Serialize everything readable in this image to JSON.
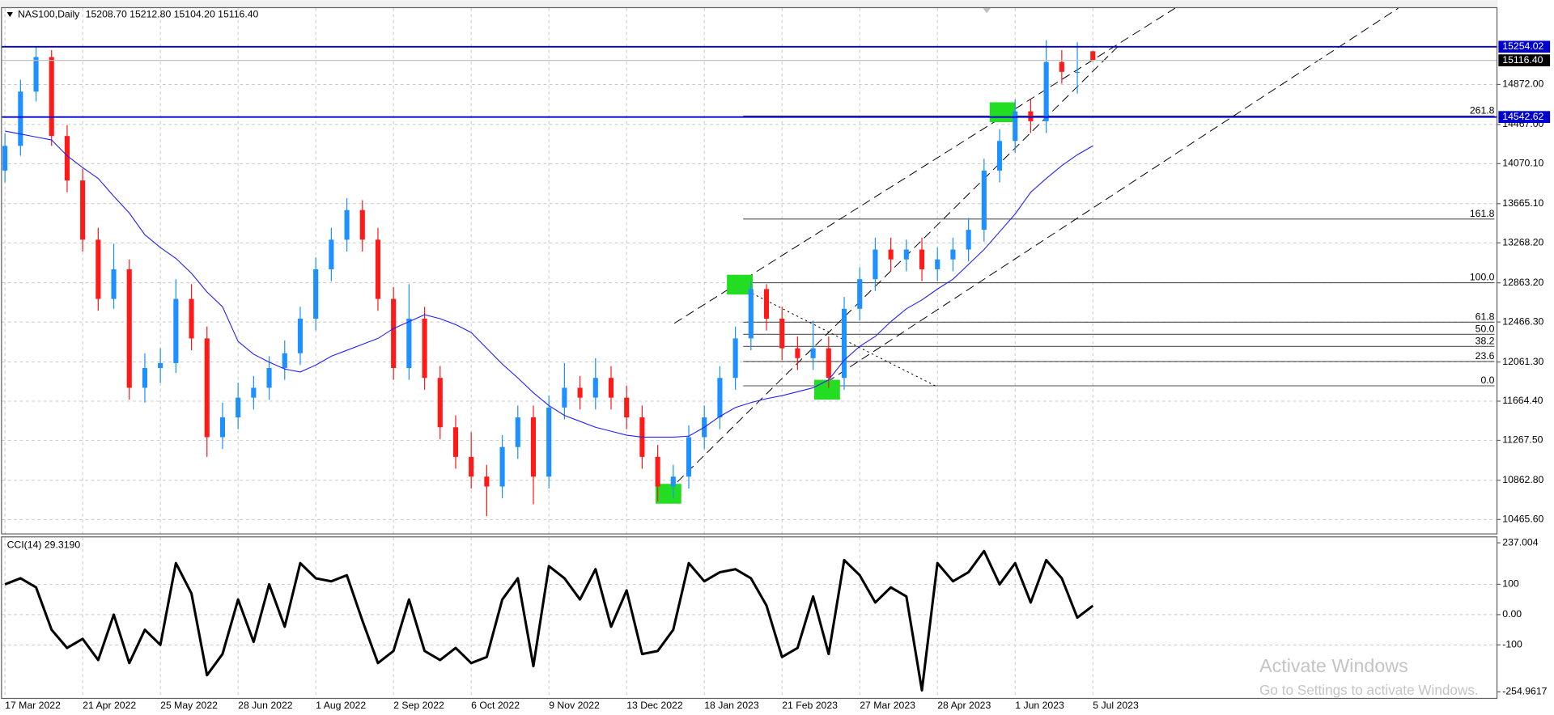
{
  "chart_data": [
    {
      "type": "candlestick",
      "title": "NAS100,Daily",
      "subtitle": "15208.70 15212.80 15104.20 15116.40",
      "categories": [
        "17 Mar 2022",
        null,
        null,
        null,
        null,
        "21 Apr 2022",
        null,
        null,
        null,
        null,
        "25 May 2022",
        null,
        null,
        null,
        null,
        "28 Jun 2022",
        null,
        null,
        null,
        null,
        "1 Aug 2022",
        null,
        null,
        null,
        null,
        "2 Sep 2022",
        null,
        null,
        null,
        null,
        "6 Oct 2022",
        null,
        null,
        null,
        null,
        "9 Nov 2022",
        null,
        null,
        null,
        null,
        "13 Dec 2022",
        null,
        null,
        null,
        null,
        "18 Jan 2023",
        null,
        null,
        null,
        null,
        "21 Feb 2023",
        null,
        null,
        null,
        null,
        "27 Mar 2023",
        null,
        null,
        null,
        null,
        "28 Apr 2023",
        null,
        null,
        null,
        null,
        "1 Jun 2023",
        null,
        null,
        null,
        null,
        "5 Jul 2023"
      ],
      "open": [
        14000,
        14250,
        14800,
        15150,
        14350,
        13900,
        13300,
        12700,
        13000,
        11800,
        12000,
        12050,
        12700,
        12300,
        11300,
        11500,
        11700,
        11800,
        12000,
        12150,
        12500,
        13000,
        13300,
        13600,
        13300,
        12700,
        12000,
        12500,
        11900,
        11400,
        11100,
        10900,
        10800,
        11200,
        11500,
        10900,
        11600,
        11800,
        11700,
        11900,
        11700,
        11500,
        11100,
        10800,
        10900,
        11300,
        11500,
        11900,
        12300,
        12800,
        12500,
        12200,
        12100,
        12200,
        11900,
        12600,
        12900,
        13200,
        13100,
        13200,
        13000,
        13100,
        13200,
        13400,
        14000,
        14300,
        14600,
        14500,
        15100,
        15000,
        15208.7
      ],
      "high": [
        14380,
        14920,
        15260,
        15220,
        14460,
        14020,
        13420,
        13260,
        13100,
        12150,
        12200,
        12900,
        12850,
        12420,
        11650,
        11850,
        11920,
        12120,
        12280,
        12620,
        13120,
        13420,
        13720,
        13700,
        13420,
        12820,
        12850,
        12620,
        12020,
        11520,
        11350,
        11020,
        11320,
        11620,
        11620,
        11720,
        12050,
        11920,
        12100,
        12020,
        11820,
        11620,
        11220,
        11020,
        11420,
        11620,
        12020,
        12420,
        12880,
        12850,
        12620,
        12320,
        12480,
        12320,
        12720,
        13020,
        13320,
        13320,
        13300,
        13320,
        13220,
        13320,
        13520,
        14120,
        14420,
        14720,
        14720,
        15320,
        15220,
        15300,
        15212.8
      ],
      "low": [
        13880,
        14150,
        14700,
        14250,
        13780,
        13180,
        12580,
        12600,
        11680,
        11650,
        11850,
        11950,
        12180,
        11100,
        11180,
        11380,
        11580,
        11680,
        11880,
        12030,
        12380,
        12880,
        13180,
        13180,
        12580,
        11880,
        11880,
        11780,
        11280,
        10980,
        10780,
        10500,
        10680,
        11080,
        10620,
        10780,
        11480,
        11580,
        11580,
        11580,
        11380,
        10980,
        10650,
        10680,
        10780,
        11180,
        11380,
        11780,
        12180,
        12380,
        12080,
        11980,
        11980,
        11800,
        11780,
        12480,
        12780,
        12980,
        12980,
        12880,
        12880,
        12980,
        13080,
        13280,
        13880,
        14180,
        14380,
        14380,
        14880,
        14780,
        15104.2
      ],
      "close": [
        14250,
        14800,
        15150,
        14350,
        13900,
        13300,
        12700,
        13000,
        11800,
        12000,
        12050,
        12700,
        12300,
        11300,
        11500,
        11700,
        11800,
        12000,
        12150,
        12500,
        13000,
        13300,
        13600,
        13300,
        12700,
        12000,
        12500,
        11900,
        11400,
        11100,
        10900,
        10800,
        11200,
        11500,
        10900,
        11600,
        11800,
        11700,
        11900,
        11700,
        11500,
        11100,
        10800,
        10900,
        11300,
        11500,
        11900,
        12300,
        12800,
        12500,
        12200,
        12100,
        12200,
        11900,
        12600,
        12900,
        13200,
        13100,
        13200,
        13000,
        13100,
        13200,
        13400,
        14000,
        14300,
        14600,
        14500,
        15100,
        15000,
        15000,
        15116.4
      ],
      "up_color": "#1e90ff",
      "down_color": "#ff1a1a",
      "ma": {
        "color": "#2020ff",
        "values": [
          14400,
          14370,
          14340,
          14310,
          14150,
          14030,
          13920,
          13740,
          13570,
          13350,
          13220,
          13110,
          12960,
          12770,
          12620,
          12270,
          12140,
          12060,
          11990,
          11960,
          12030,
          12120,
          12180,
          12240,
          12300,
          12400,
          12470,
          12540,
          12500,
          12440,
          12360,
          12200,
          12040,
          11900,
          11750,
          11620,
          11520,
          11460,
          11400,
          11360,
          11320,
          11300,
          11300,
          11300,
          11310,
          11400,
          11510,
          11600,
          11650,
          11690,
          11720,
          11760,
          11800,
          11880,
          12080,
          12220,
          12320,
          12470,
          12600,
          12690,
          12800,
          12900,
          13050,
          13200,
          13380,
          13560,
          13780,
          13920,
          14050,
          14160,
          14250
        ]
      },
      "hlines": [
        {
          "value": 15254.02,
          "label": "15254.02",
          "color": "#0000cc"
        },
        {
          "value": 14542.62,
          "label": "14542.62",
          "color": "#0000cc"
        }
      ],
      "last_price": {
        "value": 15116.4,
        "label": "15116.40"
      },
      "fib": {
        "color": "#505050",
        "levels": [
          {
            "value": 11820,
            "label": "0.0"
          },
          {
            "value": 12066,
            "label": "23.6"
          },
          {
            "value": 12219,
            "label": "38.2"
          },
          {
            "value": 12342,
            "label": "50.0"
          },
          {
            "value": 12465,
            "label": "61.8"
          },
          {
            "value": 12864,
            "label": "100.0"
          },
          {
            "value": 13509,
            "label": "161.8"
          },
          {
            "value": 14553,
            "label": "261.8"
          }
        ]
      },
      "ylim": [
        10325,
        15645
      ],
      "yticks": [
        {
          "value": 10465.6,
          "label": "10465.60"
        },
        {
          "value": 10862.8,
          "label": "10862.80"
        },
        {
          "value": 11267.5,
          "label": "11267.50"
        },
        {
          "value": 11664.4,
          "label": "11664.40"
        },
        {
          "value": 12061.3,
          "label": "12061.30"
        },
        {
          "value": 12466.3,
          "label": "12466.30"
        },
        {
          "value": 12863.2,
          "label": "12863.20"
        },
        {
          "value": 13268.2,
          "label": "13268.20"
        },
        {
          "value": 13665.1,
          "label": "13665.10"
        },
        {
          "value": 14070.1,
          "label": "14070.10"
        },
        {
          "value": 14467,
          "label": "14467.00"
        },
        {
          "value": 14872,
          "label": "14872.00"
        }
      ],
      "grid": true
    },
    {
      "type": "line",
      "title": "CCI(14) 29.3190",
      "color": "#000000",
      "values": [
        100,
        120,
        90,
        -50,
        -110,
        -80,
        -150,
        0,
        -160,
        -50,
        -100,
        170,
        70,
        -200,
        -130,
        50,
        -90,
        100,
        -40,
        170,
        120,
        110,
        130,
        -20,
        -160,
        -120,
        50,
        -120,
        -150,
        -110,
        -160,
        -140,
        50,
        120,
        -170,
        160,
        120,
        50,
        150,
        -40,
        80,
        -130,
        -120,
        -50,
        170,
        110,
        140,
        150,
        120,
        30,
        -140,
        -110,
        60,
        -130,
        180,
        130,
        40,
        90,
        60,
        -250,
        170,
        110,
        140,
        210,
        100,
        170,
        40,
        180,
        120,
        -10,
        29.319
      ],
      "ylim": [
        -275,
        255
      ],
      "yticks": [
        237.004,
        100,
        {
          "value": 0,
          "label": "0.00"
        },
        -100,
        -254.9617
      ],
      "grid": true
    }
  ],
  "overlay": {
    "watermark": [
      "Activate Windows",
      "Go to Settings to activate Windows."
    ]
  }
}
